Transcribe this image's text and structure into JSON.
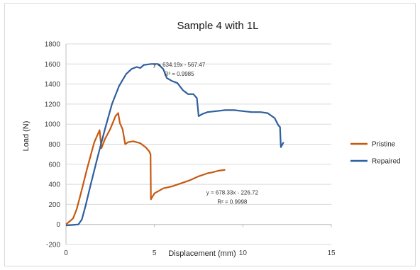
{
  "chart_data": {
    "type": "line",
    "title": "Sample 4 with 1L",
    "xlabel": "Displacement (mm)",
    "ylabel": "Load (N)",
    "xlim": [
      0,
      15
    ],
    "ylim": [
      -200,
      1800
    ],
    "x_ticks": [
      "0",
      "5",
      "10",
      "15"
    ],
    "y_ticks": [
      "-200",
      "0",
      "200",
      "400",
      "600",
      "800",
      "1000",
      "1200",
      "1400",
      "1600",
      "1800"
    ],
    "grid": "horizontal",
    "legend_position": "right",
    "series": [
      {
        "name": "Pristine",
        "color": "#c55a11",
        "points": [
          [
            0,
            0
          ],
          [
            0.2,
            30
          ],
          [
            0.4,
            60
          ],
          [
            0.6,
            150
          ],
          [
            0.8,
            280
          ],
          [
            1.0,
            420
          ],
          [
            1.2,
            560
          ],
          [
            1.4,
            690
          ],
          [
            1.6,
            820
          ],
          [
            1.8,
            900
          ],
          [
            1.9,
            940
          ],
          [
            2.0,
            760
          ],
          [
            2.2,
            850
          ],
          [
            2.5,
            950
          ],
          [
            2.8,
            1080
          ],
          [
            2.95,
            1110
          ],
          [
            3.05,
            1010
          ],
          [
            3.2,
            950
          ],
          [
            3.35,
            800
          ],
          [
            3.5,
            820
          ],
          [
            3.8,
            830
          ],
          [
            4.2,
            810
          ],
          [
            4.5,
            770
          ],
          [
            4.7,
            730
          ],
          [
            4.78,
            700
          ],
          [
            4.8,
            250
          ],
          [
            5.0,
            310
          ],
          [
            5.5,
            360
          ],
          [
            6.0,
            380
          ],
          [
            6.5,
            410
          ],
          [
            7.0,
            440
          ],
          [
            7.5,
            480
          ],
          [
            8.0,
            510
          ],
          [
            8.3,
            520
          ],
          [
            8.6,
            535
          ],
          [
            9.0,
            545
          ]
        ]
      },
      {
        "name": "Repaired",
        "color": "#2e5f9e",
        "points": [
          [
            0,
            -10
          ],
          [
            0.4,
            -5
          ],
          [
            0.7,
            0
          ],
          [
            0.9,
            50
          ],
          [
            1.1,
            180
          ],
          [
            1.4,
            400
          ],
          [
            1.8,
            680
          ],
          [
            2.2,
            950
          ],
          [
            2.6,
            1200
          ],
          [
            3.0,
            1380
          ],
          [
            3.4,
            1500
          ],
          [
            3.7,
            1550
          ],
          [
            4.0,
            1570
          ],
          [
            4.2,
            1560
          ],
          [
            4.4,
            1590
          ],
          [
            4.8,
            1600
          ],
          [
            5.2,
            1600
          ],
          [
            5.5,
            1550
          ],
          [
            5.7,
            1460
          ],
          [
            6.0,
            1430
          ],
          [
            6.3,
            1410
          ],
          [
            6.6,
            1340
          ],
          [
            6.9,
            1300
          ],
          [
            7.2,
            1300
          ],
          [
            7.4,
            1260
          ],
          [
            7.5,
            1080
          ],
          [
            7.7,
            1100
          ],
          [
            8.0,
            1120
          ],
          [
            8.5,
            1130
          ],
          [
            9.0,
            1140
          ],
          [
            9.5,
            1140
          ],
          [
            10.0,
            1130
          ],
          [
            10.5,
            1120
          ],
          [
            11.0,
            1120
          ],
          [
            11.4,
            1110
          ],
          [
            11.8,
            1060
          ],
          [
            12.0,
            990
          ],
          [
            12.1,
            970
          ],
          [
            12.15,
            770
          ],
          [
            12.3,
            820
          ]
        ]
      }
    ],
    "annotations": [
      {
        "lines": [
          "y = 634.19x - 567.47",
          "R² = 0.9985"
        ],
        "x": 6.4,
        "y": 1575
      },
      {
        "lines": [
          "y = 678.33x - 226.72",
          "R² = 0.9998"
        ],
        "x": 9.4,
        "y": 300
      }
    ]
  }
}
